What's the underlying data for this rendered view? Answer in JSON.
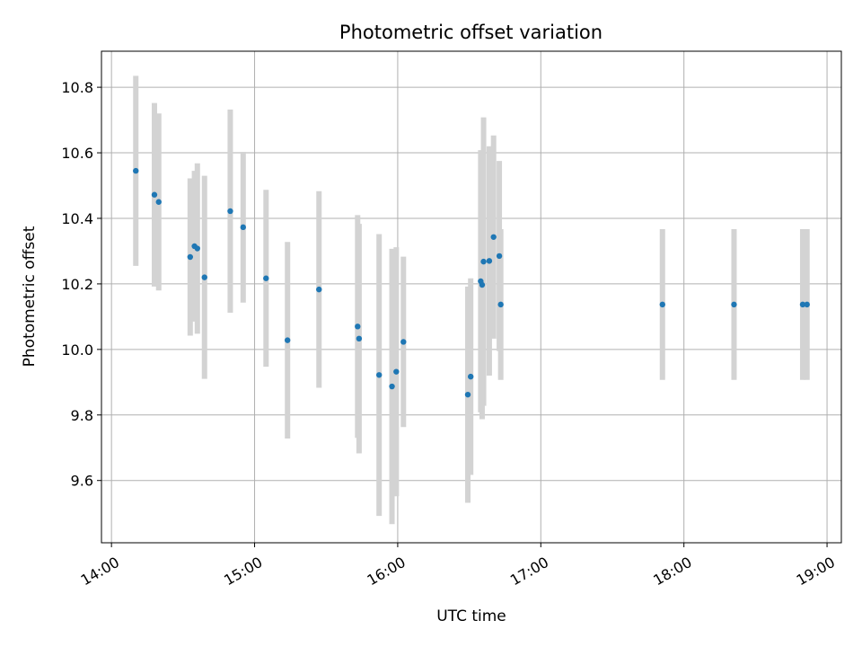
{
  "chart_data": {
    "type": "scatter",
    "title": "Photometric offset variation",
    "xlabel": "UTC time",
    "ylabel": "Photometric offset",
    "x_unit": "hours (UTC)",
    "xlim": [
      13.93,
      19.1
    ],
    "ylim": [
      9.41,
      10.91
    ],
    "x_ticks": [
      {
        "value": 14,
        "label": "14:00"
      },
      {
        "value": 15,
        "label": "15:00"
      },
      {
        "value": 16,
        "label": "16:00"
      },
      {
        "value": 17,
        "label": "17:00"
      },
      {
        "value": 18,
        "label": "18:00"
      },
      {
        "value": 19,
        "label": "19:00"
      }
    ],
    "y_ticks": [
      {
        "value": 9.6,
        "label": "9.6"
      },
      {
        "value": 9.8,
        "label": "9.8"
      },
      {
        "value": 10.0,
        "label": "10.0"
      },
      {
        "value": 10.2,
        "label": "10.2"
      },
      {
        "value": 10.4,
        "label": "10.4"
      },
      {
        "value": 10.6,
        "label": "10.6"
      },
      {
        "value": 10.8,
        "label": "10.8"
      }
    ],
    "grid": true,
    "point_color": "#1f77b4",
    "errorbar_color": "#d3d3d3",
    "points": [
      {
        "x": 14.17,
        "y": 10.545,
        "err": 0.29
      },
      {
        "x": 14.3,
        "y": 10.472,
        "err": 0.28
      },
      {
        "x": 14.33,
        "y": 10.45,
        "err": 0.27
      },
      {
        "x": 14.55,
        "y": 10.282,
        "err": 0.24
      },
      {
        "x": 14.58,
        "y": 10.315,
        "err": 0.23
      },
      {
        "x": 14.6,
        "y": 10.308,
        "err": 0.26
      },
      {
        "x": 14.65,
        "y": 10.22,
        "err": 0.31
      },
      {
        "x": 14.83,
        "y": 10.422,
        "err": 0.31
      },
      {
        "x": 14.92,
        "y": 10.373,
        "err": 0.23
      },
      {
        "x": 15.08,
        "y": 10.217,
        "err": 0.27
      },
      {
        "x": 15.23,
        "y": 10.028,
        "err": 0.3
      },
      {
        "x": 15.45,
        "y": 10.183,
        "err": 0.3
      },
      {
        "x": 15.72,
        "y": 10.07,
        "err": 0.34
      },
      {
        "x": 15.73,
        "y": 10.033,
        "err": 0.35
      },
      {
        "x": 15.87,
        "y": 9.922,
        "err": 0.43
      },
      {
        "x": 15.96,
        "y": 9.887,
        "err": 0.42
      },
      {
        "x": 15.99,
        "y": 9.932,
        "err": 0.38
      },
      {
        "x": 16.04,
        "y": 10.023,
        "err": 0.26
      },
      {
        "x": 16.49,
        "y": 9.862,
        "err": 0.33
      },
      {
        "x": 16.51,
        "y": 9.917,
        "err": 0.3
      },
      {
        "x": 16.58,
        "y": 10.208,
        "err": 0.4
      },
      {
        "x": 16.59,
        "y": 10.197,
        "err": 0.41
      },
      {
        "x": 16.6,
        "y": 10.268,
        "err": 0.44
      },
      {
        "x": 16.64,
        "y": 10.27,
        "err": 0.35
      },
      {
        "x": 16.67,
        "y": 10.343,
        "err": 0.31
      },
      {
        "x": 16.71,
        "y": 10.285,
        "err": 0.29
      },
      {
        "x": 16.72,
        "y": 10.137,
        "err": 0.23
      },
      {
        "x": 17.85,
        "y": 10.137,
        "err": 0.23
      },
      {
        "x": 18.35,
        "y": 10.137,
        "err": 0.23
      },
      {
        "x": 18.83,
        "y": 10.137,
        "err": 0.23
      },
      {
        "x": 18.86,
        "y": 10.137,
        "err": 0.23
      }
    ]
  }
}
